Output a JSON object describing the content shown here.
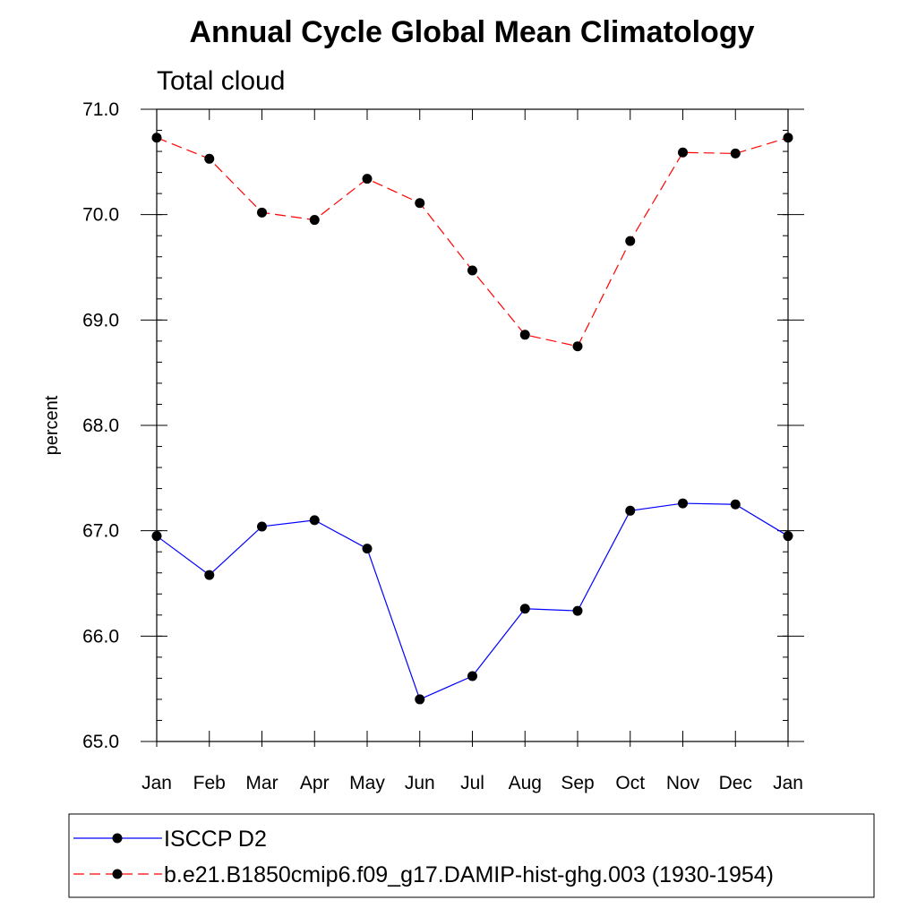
{
  "chart_data": {
    "type": "line",
    "title": "Annual Cycle Global Mean Climatology",
    "subtitle": "Total cloud",
    "xlabel": "",
    "ylabel": "percent",
    "ylim": [
      65.0,
      71.0
    ],
    "y_ticks": [
      "65.0",
      "66.0",
      "67.0",
      "68.0",
      "69.0",
      "70.0",
      "71.0"
    ],
    "categories": [
      "Jan",
      "Feb",
      "Mar",
      "Apr",
      "May",
      "Jun",
      "Jul",
      "Aug",
      "Sep",
      "Oct",
      "Nov",
      "Dec",
      "Jan"
    ],
    "grid": false,
    "legend_position": "bottom",
    "series": [
      {
        "name": "ISCCP D2",
        "color": "#0000ff",
        "line_style": "solid",
        "marker": "filled-circle",
        "values": [
          66.95,
          66.58,
          67.04,
          67.1,
          66.83,
          65.4,
          65.62,
          66.26,
          66.24,
          67.19,
          67.26,
          67.25,
          66.95
        ]
      },
      {
        "name": "b.e21.B1850cmip6.f09_g17.DAMIP-hist-ghg.003 (1930-1954)",
        "color": "#ff0000",
        "line_style": "dashed",
        "marker": "filled-circle",
        "values": [
          70.73,
          70.53,
          70.02,
          69.95,
          70.34,
          70.11,
          69.47,
          68.86,
          68.75,
          69.75,
          70.59,
          70.58,
          70.73
        ]
      }
    ]
  }
}
